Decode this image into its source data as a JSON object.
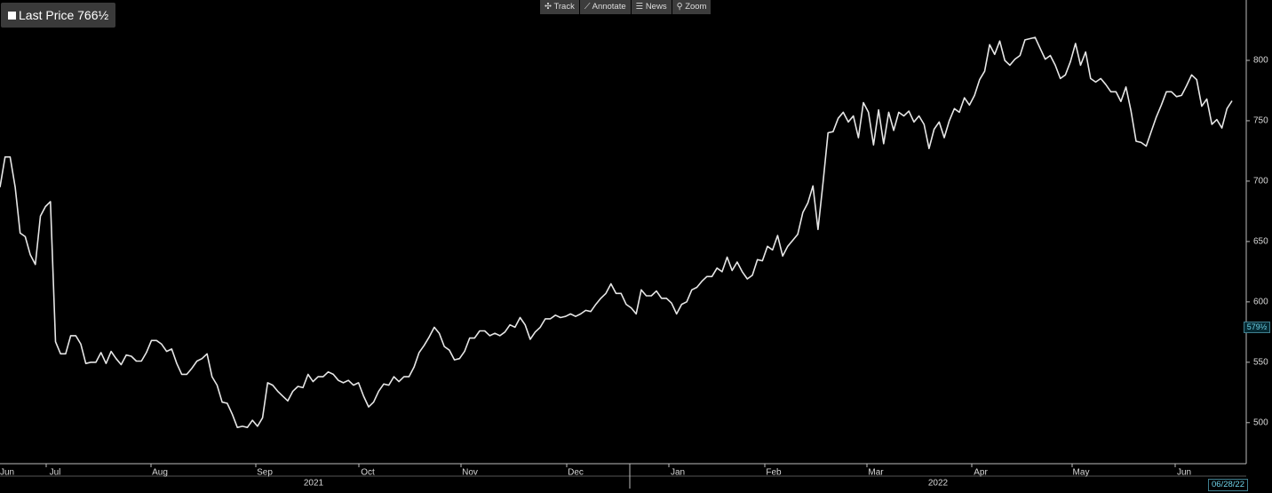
{
  "chart_data": {
    "type": "line",
    "series": [
      {
        "name": "Last Price",
        "color": "#e6e6e6",
        "values": [
          695,
          720,
          720,
          695,
          657,
          654,
          639,
          631,
          671,
          679,
          683,
          567,
          557,
          557,
          572,
          572,
          565,
          549,
          550,
          550,
          558,
          549,
          559,
          553,
          548,
          556,
          555,
          551,
          551,
          558,
          568,
          568,
          565,
          559,
          561,
          549,
          540,
          540,
          545,
          551,
          553,
          557,
          538,
          531,
          517,
          516,
          507,
          496,
          497,
          496,
          502,
          497,
          504,
          533,
          531,
          526,
          522,
          518,
          526,
          530,
          529,
          540,
          534,
          538,
          538,
          542,
          540,
          535,
          533,
          535,
          531,
          533,
          522,
          513,
          517,
          526,
          532,
          531,
          538,
          534,
          538,
          538,
          546,
          558,
          564,
          571,
          579,
          574,
          563,
          560,
          552,
          553,
          559,
          570,
          570,
          576,
          576,
          572,
          574,
          572,
          575,
          581,
          579,
          587,
          581,
          569,
          575,
          579,
          586,
          586,
          589,
          587,
          588,
          590,
          588,
          590,
          593,
          592,
          598,
          603,
          607,
          615,
          607,
          607,
          598,
          595,
          590,
          610,
          605,
          605,
          609,
          603,
          603,
          599,
          590,
          598,
          600,
          610,
          612,
          617,
          621,
          621,
          628,
          625,
          637,
          626,
          633,
          625,
          619,
          622,
          635,
          634,
          646,
          643,
          655,
          638,
          646,
          651,
          656,
          674,
          682,
          696,
          660,
          699,
          740,
          741,
          752,
          757,
          749,
          754,
          736,
          765,
          757,
          730,
          759,
          731,
          757,
          742,
          757,
          754,
          758,
          749,
          754,
          747,
          727,
          743,
          749,
          736,
          750,
          760,
          757,
          769,
          763,
          771,
          784,
          791,
          813,
          805,
          816,
          800,
          796,
          801,
          804,
          817,
          818,
          819,
          810,
          801,
          804,
          796,
          785,
          788,
          799,
          814,
          796,
          807,
          785,
          782,
          785,
          780,
          774,
          774,
          766,
          778,
          758,
          733,
          732,
          729,
          741,
          753,
          763,
          774,
          774,
          770,
          771,
          779,
          788,
          784,
          762,
          768,
          747,
          751,
          744,
          760,
          766.5
        ]
      }
    ],
    "last_price": {
      "value": 766.5,
      "label": "766½"
    },
    "marker": {
      "value": 579.5,
      "label": "579½"
    },
    "ylim": [
      466,
      850
    ],
    "yticks": [
      500,
      550,
      600,
      650,
      700,
      750,
      800
    ],
    "x_labels": [
      "Jun",
      "Jul",
      "Aug",
      "Sep",
      "Oct",
      "Nov",
      "Dec",
      "Jan",
      "Feb",
      "Mar",
      "Apr",
      "May",
      "Jun"
    ],
    "year_labels": [
      "2021",
      "2022"
    ],
    "date": "06/28/22",
    "toolbar": [
      "Track",
      "Annotate",
      "News",
      "Zoom"
    ]
  }
}
